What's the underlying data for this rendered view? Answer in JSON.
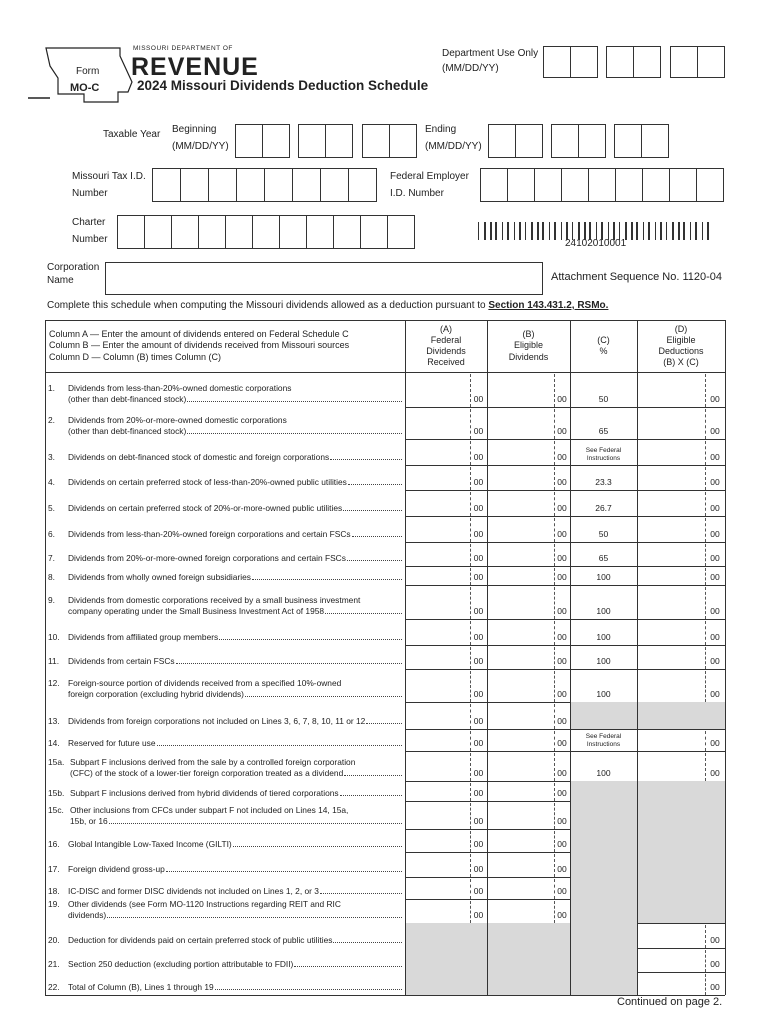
{
  "header": {
    "dept": "MISSOURI DEPARTMENT OF",
    "revenue": "REVENUE",
    "form_label": "Form",
    "form_number": "MO-C",
    "title": "2024 Missouri Dividends Deduction Schedule",
    "dept_use": "Department Use Only",
    "dept_use_format": "(MM/DD/YY)"
  },
  "taxable_year": {
    "label": "Taxable Year",
    "beginning": "Beginning",
    "beginning_format": "(MM/DD/YY)",
    "ending": "Ending",
    "ending_format": "(MM/DD/YY)"
  },
  "ids": {
    "tax_id": [
      "Missouri Tax I.D.",
      "Number"
    ],
    "fein": [
      "Federal Employer",
      "I.D. Number"
    ],
    "charter": [
      "Charter",
      "Number"
    ],
    "barcode_number": "24102010001"
  },
  "corporation_name": [
    "Corporation",
    "Name"
  ],
  "attachment": "Attachment Sequence No. 1120-04",
  "instructions": {
    "text": "Complete this schedule when computing the Missouri dividends allowed as a deduction pursuant to ",
    "link": "Section 143.431.2, RSMo."
  },
  "columns": {
    "desc": [
      "Column A — Enter the amount of dividends entered on Federal Schedule C",
      "Column B — Enter the amount of dividends received from Missouri sources",
      "Column D — Column (B) times Column (C)"
    ],
    "a": [
      "(A)",
      "Federal",
      "Dividends",
      "Received"
    ],
    "b": [
      "(B)",
      "Eligible",
      "Dividends"
    ],
    "c": [
      "(C)",
      "%"
    ],
    "d": [
      "(D)",
      "Eligible",
      "Deductions",
      "(B) X (C)"
    ]
  },
  "rows": [
    {
      "num": "1.",
      "lines": [
        "Dividends from less-than-20%-owned domestic corporations",
        "(other than debt-financed stock)"
      ],
      "a": "00",
      "b": "00",
      "c": 50,
      "d": "00"
    },
    {
      "num": "2.",
      "lines": [
        "Dividends from 20%-or-more-owned domestic corporations",
        "(other than debt-financed stock)"
      ],
      "a": "00",
      "b": "00",
      "c": 65,
      "d": "00"
    },
    {
      "num": "3.",
      "lines": [
        "Dividends on debt-financed stock of domestic and foreign corporations"
      ],
      "a": "00",
      "b": "00",
      "c": "See Federal Instructions",
      "d": "00"
    },
    {
      "num": "4.",
      "lines": [
        "Dividends on certain preferred stock of less-than-20%-owned public utilities"
      ],
      "a": "00",
      "b": "00",
      "c": 23.3,
      "d": "00"
    },
    {
      "num": "5.",
      "lines": [
        "Dividends on certain preferred stock of 20%-or-more-owned public utilities"
      ],
      "a": "00",
      "b": "00",
      "c": 26.7,
      "d": "00"
    },
    {
      "num": "6.",
      "lines": [
        "Dividends from less-than-20%-owned foreign corporations and certain FSCs"
      ],
      "a": "00",
      "b": "00",
      "c": 50,
      "d": "00"
    },
    {
      "num": "7.",
      "lines": [
        "Dividends from 20%-or-more-owned foreign corporations and certain FSCs"
      ],
      "a": "00",
      "b": "00",
      "c": 65,
      "d": "00"
    },
    {
      "num": "8.",
      "lines": [
        "Dividends from wholly owned foreign subsidiaries"
      ],
      "a": "00",
      "b": "00",
      "c": 100,
      "d": "00"
    },
    {
      "num": "9.",
      "lines": [
        "Dividends from domestic corporations received by a small business investment",
        "company operating under the Small Business Investment Act of 1958"
      ],
      "a": "00",
      "b": "00",
      "c": 100,
      "d": "00"
    },
    {
      "num": "10.",
      "lines": [
        "Dividends from affiliated group members"
      ],
      "a": "00",
      "b": "00",
      "c": 100,
      "d": "00"
    },
    {
      "num": "11.",
      "lines": [
        "Dividends from certain FSCs"
      ],
      "a": "00",
      "b": "00",
      "c": 100,
      "d": "00"
    },
    {
      "num": "12.",
      "lines": [
        "Foreign-source portion of dividends received from a specified 10%-owned",
        "foreign corporation (excluding hybrid dividends)"
      ],
      "a": "00",
      "b": "00",
      "c": 100,
      "d": "00"
    },
    {
      "num": "13.",
      "lines": [
        "Dividends from foreign corporations not included on Lines 3, 6, 7, 8, 10, 11 or 12"
      ],
      "a": "00",
      "b": "00",
      "c": null,
      "d": null
    },
    {
      "num": "14.",
      "lines": [
        "Reserved for future use"
      ],
      "a": "00",
      "b": "00",
      "c": "See Federal Instructions",
      "d": "00"
    },
    {
      "num": "15a.",
      "lines": [
        "Subpart F inclusions derived from the sale by a controlled foreign corporation",
        "(CFC) of the stock of a lower-tier foreign corporation treated as a dividend"
      ],
      "a": "00",
      "b": "00",
      "c": 100,
      "d": "00"
    },
    {
      "num": "15b.",
      "lines": [
        "Subpart F inclusions derived from hybrid dividends of tiered corporations"
      ],
      "a": "00",
      "b": "00",
      "c": null,
      "d": null
    },
    {
      "num": "15c.",
      "lines": [
        "Other inclusions from CFCs under subpart F not included on Lines 14, 15a,",
        "15b, or 16"
      ],
      "a": "00",
      "b": "00",
      "c": null,
      "d": null
    },
    {
      "num": "16.",
      "lines": [
        "Global Intangible Low-Taxed Income (GILTI)"
      ],
      "a": "00",
      "b": "00",
      "c": null,
      "d": null
    },
    {
      "num": "17.",
      "lines": [
        "Foreign dividend gross-up"
      ],
      "a": "00",
      "b": "00",
      "c": null,
      "d": null
    },
    {
      "num": "18.",
      "lines": [
        "IC-DISC and former DISC dividends not included on Lines 1, 2, or 3"
      ],
      "a": "00",
      "b": "00",
      "c": null,
      "d": null
    },
    {
      "num": "19.",
      "lines": [
        "Other dividends (see Form MO-1120 Instructions regarding REIT and RIC",
        "dividends)"
      ],
      "a": "00",
      "b": "00",
      "c": null,
      "d": null
    },
    {
      "num": "20.",
      "lines": [
        "Deduction for dividends paid on certain preferred stock of public utilities"
      ],
      "a": null,
      "b": null,
      "c": null,
      "d": "00"
    },
    {
      "num": "21.",
      "lines": [
        "Section 250 deduction (excluding portion attributable to FDII)"
      ],
      "a": null,
      "b": null,
      "c": null,
      "d": "00"
    },
    {
      "num": "22.",
      "lines": [
        "Total of Column (B), Lines 1 through 19"
      ],
      "a": null,
      "b": null,
      "c": null,
      "d": "00"
    }
  ],
  "footer": "Continued on page 2."
}
